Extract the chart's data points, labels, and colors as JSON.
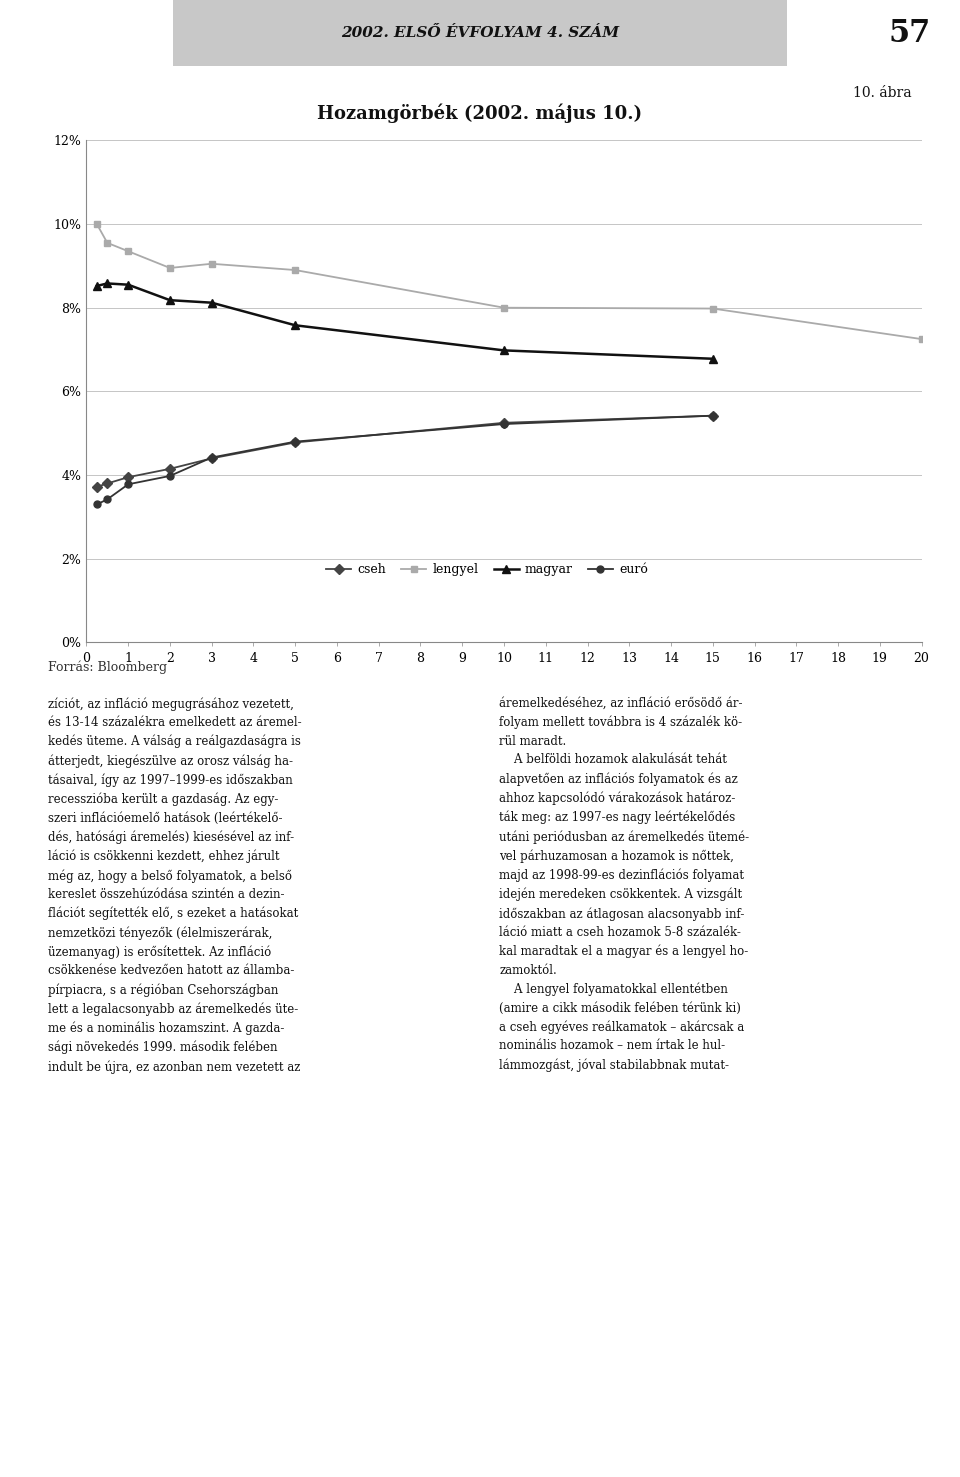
{
  "title": "Hozamgörbék (2002. május 10.)",
  "header_text": "2002. ELSŐ ÉVFOLYAM 4. SZÁM",
  "page_num": "57",
  "figure_label": "10. ábra",
  "source": "Forrás: Bloomberg",
  "x_data": [
    0.25,
    0.5,
    1,
    2,
    3,
    5,
    10,
    15,
    20
  ],
  "cseh": [
    3.72,
    3.8,
    3.95,
    4.15,
    4.4,
    4.78,
    5.25,
    5.42,
    null
  ],
  "lengyel": [
    10.0,
    9.55,
    9.35,
    8.95,
    9.05,
    8.9,
    8.0,
    7.98,
    7.25
  ],
  "magyar": [
    8.52,
    8.58,
    8.55,
    8.18,
    8.12,
    7.58,
    6.98,
    6.78,
    null
  ],
  "euro": [
    3.3,
    3.42,
    3.78,
    3.98,
    4.42,
    4.8,
    5.22,
    5.42,
    null
  ],
  "cseh_color": "#444444",
  "lengyel_color": "#aaaaaa",
  "magyar_color": "#111111",
  "euro_color": "#333333",
  "header_bg": "#c8c8c8",
  "xlim": [
    0,
    20
  ],
  "ylim": [
    0,
    0.12
  ],
  "xticks": [
    0,
    1,
    2,
    3,
    4,
    5,
    6,
    7,
    8,
    9,
    10,
    11,
    12,
    13,
    14,
    15,
    16,
    17,
    18,
    19,
    20
  ],
  "yticks": [
    0,
    0.02,
    0.04,
    0.06,
    0.08,
    0.1,
    0.12
  ],
  "ytick_labels": [
    "0%",
    "2%",
    "4%",
    "6%",
    "8%",
    "10%",
    "12%"
  ],
  "legend_labels": [
    "cseh",
    "lengyel",
    "magyar",
    "euró"
  ],
  "body_text_left": "zíciót, az infláció megugrásához vezetett,\nés 13-14 százalékra emelkedett az áremel-\nkedés üteme. A válság a reálgazdaságra is\nátterjedt, kiegészülve az orosz válság ha-\ntásaival, így az 1997–1999-es időszakban\nrecesszióba került a gazdaság. Az egy-\nszeri inflációemelő hatások (leértékelő-\ndés, hatósági áremelés) kiesésével az inf-\nláció is csökkenni kezdett, ehhez járult\nmég az, hogy a belső folyamatok, a belső\nkereslet összehúzódása szintén a dezin-\nflációt segítették elő, s ezeket a hatásokat\nnemzetközi tényezők (élelmiszerárak,\nüzemanyag) is erősítettek. Az infláció\ncsökkenése kedvezően hatott az államba-\npírpiacra, s a régióban Csehországban\nlett a legalacsonyabb az áremelkedés üte-\nme és a nominális hozamszint. A gazda-\nsági növekedés 1999. második felében\nindult be újra, ez azonban nem vezetett az",
  "body_text_right": "áremelkedéséhez, az infláció erősödő ár-\nfolyam mellett továbbra is 4 százalék kö-\nrül maradt.\n    A belföldi hozamok alakulását tehát\nalapvetően az inflációs folyamatok és az\nahhoz kapcsolódó várakozások határoz-\nták meg: az 1997-es nagy leértékelődés\nutáni periódusban az áremelkedés ütemé-\nvel párhuzamosan a hozamok is nőttek,\nmajd az 1998-99-es dezinflációs folyamat\nidején meredeken csökkentek. A vizsgált\nidőszakban az átlagosan alacsonyabb inf-\nláció miatt a cseh hozamok 5-8 százalék-\nkal maradtak el a magyar és a lengyel ho-\nzamoktól.\n    A lengyel folyamatokkal ellentétben\n(amire a cikk második felében térünk ki)\na cseh egyéves reálkamatok – akárcsak a\nnominális hozamok – nem írtak le hul-\nlámmozgást, jóval stabilabbnak mutat-"
}
